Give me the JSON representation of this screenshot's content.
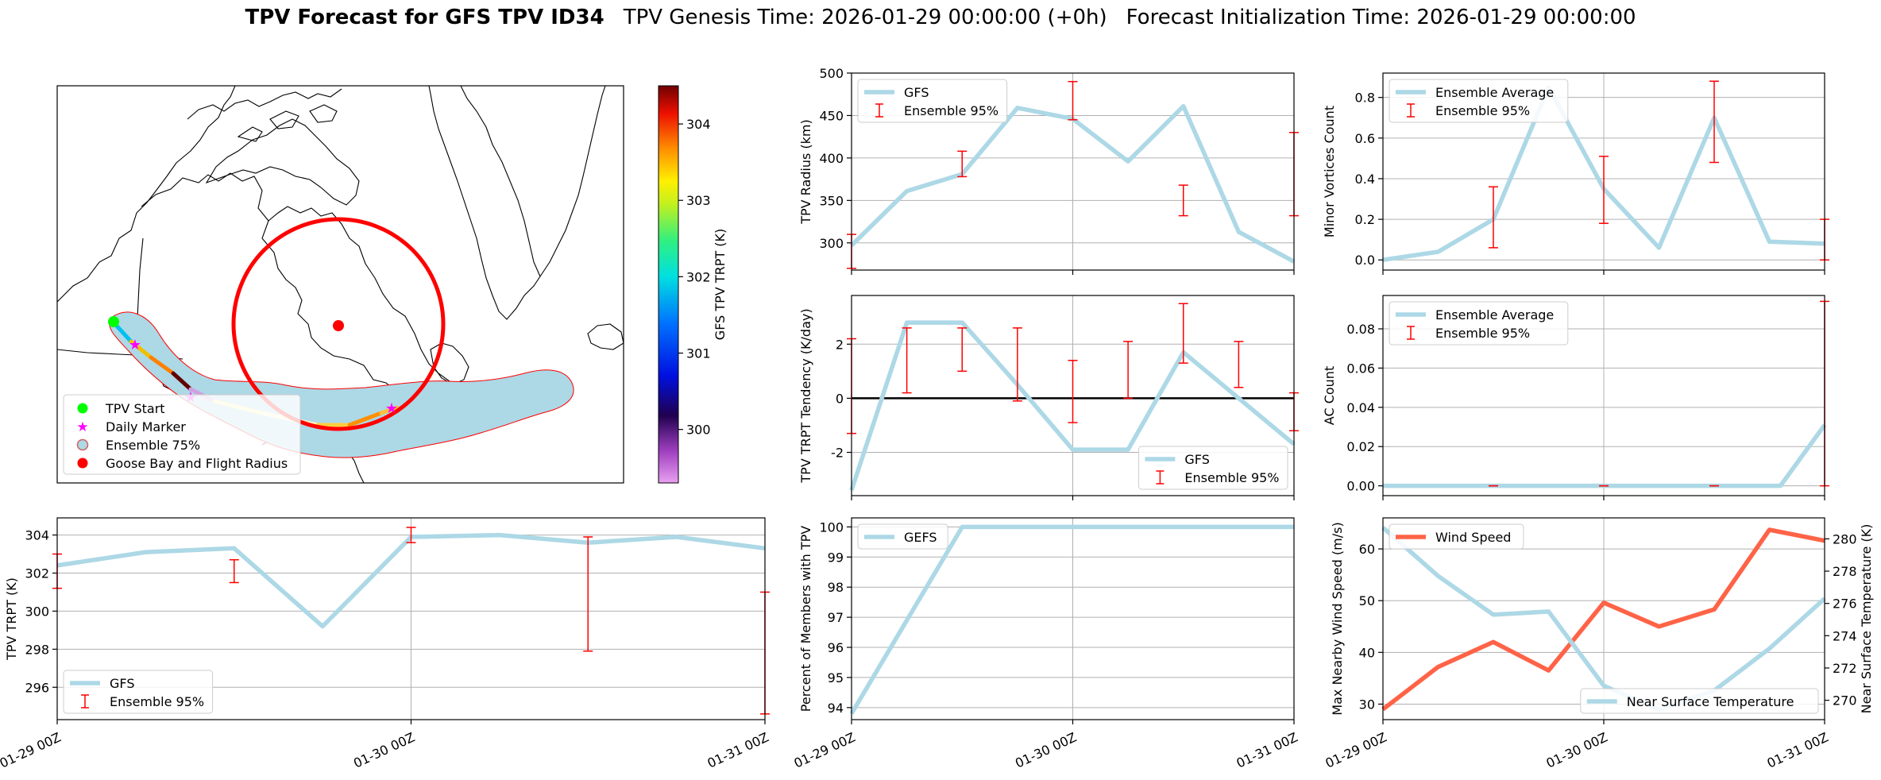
{
  "header": {
    "title_bold": "TPV Forecast for GFS TPV ID34",
    "genesis": "TPV Genesis Time: 2026-01-29 00:00:00 (+0h)",
    "init": "Forecast Initialization Time: 2026-01-29 00:00:00"
  },
  "colors": {
    "gfs_line": "#add8e6",
    "errorbar": "#ff0000",
    "wind": "#ff6347",
    "temp_axis": "#4169e1",
    "tpv_start": "#00ff00",
    "daily_marker": "#ff00ff",
    "goose_bay": "#ff0000",
    "ensemble75_fill": "#add8e6"
  },
  "map": {
    "colorbar_label": "GFS TPV TRPT (K)",
    "colorbar_ticks": [
      300,
      301,
      302,
      303,
      304
    ],
    "colorbar_range": [
      299.3,
      304.5
    ],
    "legend": {
      "start": "TPV Start",
      "daily": "Daily Marker",
      "ens75": "Ensemble 75%",
      "goose": "Goose Bay and Flight Radius"
    }
  },
  "chart_data": [
    {
      "id": "trpt",
      "type": "line",
      "ylabel": "TPV TRPT (K)",
      "ylim": [
        294.3,
        304.9
      ],
      "yticks": [
        296,
        298,
        300,
        302,
        304
      ],
      "xlabels": [
        "01-29 00Z",
        "01-30 00Z",
        "01-31 00Z"
      ],
      "legend_pos": "lower-left",
      "series": [
        {
          "name": "GFS",
          "x": [
            0,
            0.125,
            0.25,
            0.375,
            0.5,
            0.625,
            0.75,
            0.875,
            1
          ],
          "values": [
            302.4,
            303.1,
            303.3,
            299.2,
            303.9,
            304.0,
            303.6,
            303.9,
            303.3
          ]
        }
      ],
      "errorbars": {
        "name": "Ensemble 95%",
        "x": [
          0,
          0.25,
          0.5,
          0.75,
          1
        ],
        "low": [
          301.2,
          301.5,
          303.6,
          297.9,
          294.6
        ],
        "high": [
          303.0,
          302.7,
          304.4,
          303.9,
          301.0
        ]
      }
    },
    {
      "id": "radius",
      "type": "line",
      "ylabel": "TPV Radius (km)",
      "ylim": [
        268,
        500
      ],
      "yticks": [
        300,
        350,
        400,
        450,
        500
      ],
      "xlabels": [],
      "legend_pos": "upper-left",
      "series": [
        {
          "name": "GFS",
          "x": [
            0,
            0.125,
            0.25,
            0.375,
            0.5,
            0.625,
            0.75,
            0.875,
            1
          ],
          "values": [
            297,
            361,
            381,
            459,
            446,
            396,
            461,
            313,
            278
          ]
        }
      ],
      "errorbars": {
        "name": "Ensemble 95%",
        "x": [
          0,
          0.25,
          0.5,
          0.75,
          1
        ],
        "low": [
          270,
          378,
          445,
          332,
          332
        ],
        "high": [
          310,
          408,
          490,
          368,
          430
        ]
      }
    },
    {
      "id": "tendency",
      "type": "line",
      "ylabel": "TPV TRPT Tendency (K/day)",
      "ylim": [
        -3.6,
        3.8
      ],
      "yticks": [
        -2,
        0,
        2
      ],
      "xlabels": [],
      "legend_pos": "lower-right",
      "zero_line": true,
      "series": [
        {
          "name": "GFS",
          "x": [
            0,
            0.125,
            0.25,
            0.375,
            0.5,
            0.625,
            0.75,
            0.875,
            1
          ],
          "values": [
            -3.4,
            2.8,
            2.8,
            0.5,
            -1.9,
            -1.9,
            1.7,
            0.0,
            -1.7
          ]
        }
      ],
      "errorbars": {
        "name": "Ensemble 95%",
        "x": [
          0,
          0.125,
          0.25,
          0.375,
          0.5,
          0.625,
          0.75,
          0.875,
          1
        ],
        "low": [
          -1.3,
          0.2,
          1.0,
          -0.1,
          -0.9,
          0.0,
          1.3,
          0.4,
          -1.2
        ],
        "high": [
          2.2,
          2.6,
          2.6,
          2.6,
          1.4,
          2.1,
          3.5,
          2.1,
          0.2
        ]
      }
    },
    {
      "id": "members",
      "type": "line",
      "ylabel": "Percent of Members with TPV",
      "ylim": [
        93.6,
        100.3
      ],
      "yticks": [
        94,
        95,
        96,
        97,
        98,
        99,
        100
      ],
      "xlabels": [
        "01-29 00Z",
        "01-30 00Z",
        "01-31 00Z"
      ],
      "legend_pos": "upper-left",
      "series": [
        {
          "name": "GEFS",
          "x": [
            0,
            0.25,
            0.5,
            0.75,
            1
          ],
          "values": [
            93.8,
            100,
            100,
            100,
            100
          ]
        }
      ]
    },
    {
      "id": "minor",
      "type": "line",
      "ylabel": "Minor Vortices Count",
      "ylim": [
        -0.05,
        0.92
      ],
      "yticks": [
        0.0,
        0.2,
        0.4,
        0.6,
        0.8
      ],
      "xlabels": [],
      "legend_pos": "upper-left",
      "series": [
        {
          "name": "Ensemble Average",
          "x": [
            0,
            0.125,
            0.25,
            0.375,
            0.5,
            0.625,
            0.75,
            0.875,
            1
          ],
          "values": [
            0.0,
            0.04,
            0.2,
            0.85,
            0.35,
            0.06,
            0.7,
            0.09,
            0.08
          ]
        }
      ],
      "errorbars": {
        "name": "Ensemble 95%",
        "x": [
          0.25,
          0.5,
          0.75,
          1
        ],
        "low": [
          0.06,
          0.18,
          0.48,
          0.0
        ],
        "high": [
          0.36,
          0.51,
          0.88,
          0.2
        ]
      }
    },
    {
      "id": "ac",
      "type": "line",
      "ylabel": "AC Count",
      "ylim": [
        -0.005,
        0.097
      ],
      "yticks": [
        0.0,
        0.02,
        0.04,
        0.06,
        0.08
      ],
      "xlabels": [],
      "legend_pos": "upper-left",
      "series": [
        {
          "name": "Ensemble Average",
          "x": [
            0,
            0.125,
            0.25,
            0.375,
            0.5,
            0.625,
            0.75,
            0.875,
            0.9,
            1
          ],
          "values": [
            0,
            0,
            0,
            0,
            0,
            0,
            0,
            0,
            0,
            0.031
          ]
        }
      ],
      "errorbars": {
        "name": "Ensemble 95%",
        "x": [
          0.25,
          0.5,
          0.75,
          1
        ],
        "low": [
          0,
          0,
          0,
          0
        ],
        "high": [
          0,
          0,
          0,
          0.094
        ]
      }
    },
    {
      "id": "wind",
      "type": "line",
      "ylabel": "Max Nearby Wind Speed (m/s)",
      "ylabel2": "Near Surface Temperature (K)",
      "ylim": [
        27,
        66
      ],
      "yticks": [
        30,
        40,
        50,
        60
      ],
      "ylim2": [
        268.8,
        281.3
      ],
      "yticks2": [
        270,
        272,
        274,
        276,
        278,
        280
      ],
      "xlabels": [
        "01-29 00Z",
        "01-30 00Z",
        "01-31 00Z"
      ],
      "series": [
        {
          "name": "Wind Speed",
          "axis": "left",
          "x": [
            0,
            0.125,
            0.25,
            0.375,
            0.5,
            0.625,
            0.75,
            0.875,
            1
          ],
          "values": [
            29,
            37.2,
            42,
            36.5,
            49.6,
            45,
            48.3,
            63.7,
            61.6
          ]
        },
        {
          "name": "Near Surface Temperature",
          "axis": "right",
          "x": [
            0,
            0.125,
            0.25,
            0.375,
            0.5,
            0.625,
            0.75,
            0.875,
            1
          ],
          "values": [
            280.7,
            277.7,
            275.3,
            275.5,
            270.9,
            269.4,
            270.6,
            273.2,
            276.3
          ]
        }
      ]
    }
  ]
}
